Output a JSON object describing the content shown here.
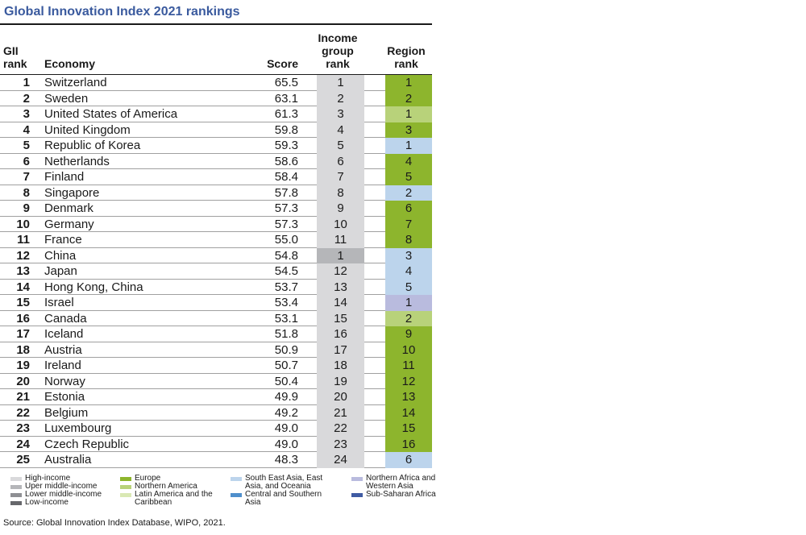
{
  "title": "Global Innovation Index 2021 rankings",
  "headers": {
    "gii_rank": "GII rank",
    "economy": "Economy",
    "score": "Score",
    "income_group_rank": "Income group rank",
    "region_rank": "Region rank"
  },
  "colors": {
    "high_income": "#d9d9db",
    "upper_middle_income": "#b5b6b9",
    "lower_middle_income": "#8e8f93",
    "low_income": "#66676b",
    "europe": "#8db52d",
    "northern_america": "#b8d27a",
    "latin_america": "#d9e8b4",
    "south_east_asia": "#bcd4ec",
    "central_southern_asia": "#4f8fcc",
    "northern_africa_western_asia": "#b9bbde",
    "sub_saharan_africa": "#3f5ba3"
  },
  "rows": [
    {
      "rank": "1",
      "economy": "Switzerland",
      "score": "65.5",
      "income_rank": "1",
      "income_group": "high",
      "region_rank": "1",
      "region": "europe"
    },
    {
      "rank": "2",
      "economy": "Sweden",
      "score": "63.1",
      "income_rank": "2",
      "income_group": "high",
      "region_rank": "2",
      "region": "europe"
    },
    {
      "rank": "3",
      "economy": "United States of America",
      "score": "61.3",
      "income_rank": "3",
      "income_group": "high",
      "region_rank": "1",
      "region": "northern_america"
    },
    {
      "rank": "4",
      "economy": "United Kingdom",
      "score": "59.8",
      "income_rank": "4",
      "income_group": "high",
      "region_rank": "3",
      "region": "europe"
    },
    {
      "rank": "5",
      "economy": "Republic of Korea",
      "score": "59.3",
      "income_rank": "5",
      "income_group": "high",
      "region_rank": "1",
      "region": "south_east_asia"
    },
    {
      "rank": "6",
      "economy": "Netherlands",
      "score": "58.6",
      "income_rank": "6",
      "income_group": "high",
      "region_rank": "4",
      "region": "europe"
    },
    {
      "rank": "7",
      "economy": "Finland",
      "score": "58.4",
      "income_rank": "7",
      "income_group": "high",
      "region_rank": "5",
      "region": "europe"
    },
    {
      "rank": "8",
      "economy": "Singapore",
      "score": "57.8",
      "income_rank": "8",
      "income_group": "high",
      "region_rank": "2",
      "region": "south_east_asia"
    },
    {
      "rank": "9",
      "economy": "Denmark",
      "score": "57.3",
      "income_rank": "9",
      "income_group": "high",
      "region_rank": "6",
      "region": "europe"
    },
    {
      "rank": "10",
      "economy": "Germany",
      "score": "57.3",
      "income_rank": "10",
      "income_group": "high",
      "region_rank": "7",
      "region": "europe"
    },
    {
      "rank": "11",
      "economy": "France",
      "score": "55.0",
      "income_rank": "11",
      "income_group": "high",
      "region_rank": "8",
      "region": "europe"
    },
    {
      "rank": "12",
      "economy": "China",
      "score": "54.8",
      "income_rank": "1",
      "income_group": "upper_middle",
      "region_rank": "3",
      "region": "south_east_asia"
    },
    {
      "rank": "13",
      "economy": "Japan",
      "score": "54.5",
      "income_rank": "12",
      "income_group": "high",
      "region_rank": "4",
      "region": "south_east_asia"
    },
    {
      "rank": "14",
      "economy": "Hong Kong, China",
      "score": "53.7",
      "income_rank": "13",
      "income_group": "high",
      "region_rank": "5",
      "region": "south_east_asia"
    },
    {
      "rank": "15",
      "economy": "Israel",
      "score": "53.4",
      "income_rank": "14",
      "income_group": "high",
      "region_rank": "1",
      "region": "northern_africa_western_asia"
    },
    {
      "rank": "16",
      "economy": "Canada",
      "score": "53.1",
      "income_rank": "15",
      "income_group": "high",
      "region_rank": "2",
      "region": "northern_america"
    },
    {
      "rank": "17",
      "economy": "Iceland",
      "score": "51.8",
      "income_rank": "16",
      "income_group": "high",
      "region_rank": "9",
      "region": "europe"
    },
    {
      "rank": "18",
      "economy": "Austria",
      "score": "50.9",
      "income_rank": "17",
      "income_group": "high",
      "region_rank": "10",
      "region": "europe"
    },
    {
      "rank": "19",
      "economy": "Ireland",
      "score": "50.7",
      "income_rank": "18",
      "income_group": "high",
      "region_rank": "11",
      "region": "europe"
    },
    {
      "rank": "20",
      "economy": "Norway",
      "score": "50.4",
      "income_rank": "19",
      "income_group": "high",
      "region_rank": "12",
      "region": "europe"
    },
    {
      "rank": "21",
      "economy": "Estonia",
      "score": "49.9",
      "income_rank": "20",
      "income_group": "high",
      "region_rank": "13",
      "region": "europe"
    },
    {
      "rank": "22",
      "economy": "Belgium",
      "score": "49.2",
      "income_rank": "21",
      "income_group": "high",
      "region_rank": "14",
      "region": "europe"
    },
    {
      "rank": "23",
      "economy": "Luxembourg",
      "score": "49.0",
      "income_rank": "22",
      "income_group": "high",
      "region_rank": "15",
      "region": "europe"
    },
    {
      "rank": "24",
      "economy": "Czech Republic",
      "score": "49.0",
      "income_rank": "23",
      "income_group": "high",
      "region_rank": "16",
      "region": "europe"
    },
    {
      "rank": "25",
      "economy": "Australia",
      "score": "48.3",
      "income_rank": "24",
      "income_group": "high",
      "region_rank": "6",
      "region": "south_east_asia"
    }
  ],
  "legend": {
    "high_income": "High-income",
    "upper_middle_income": "Uper middle-income",
    "lower_middle_income": "Lower middle-income",
    "low_income": "Low-income",
    "europe": "Europe",
    "northern_america": "Northern America",
    "latin_america": "Latin America and the Caribbean",
    "south_east_asia": "South East Asia, East Asia, and Oceania",
    "central_southern_asia": "Central and Southern Asia",
    "northern_africa_western_asia": "Northern Africa and Western Asia",
    "sub_saharan_africa": "Sub-Saharan Africa"
  },
  "source": "Source: Global Innovation Index Database, WIPO, 2021."
}
